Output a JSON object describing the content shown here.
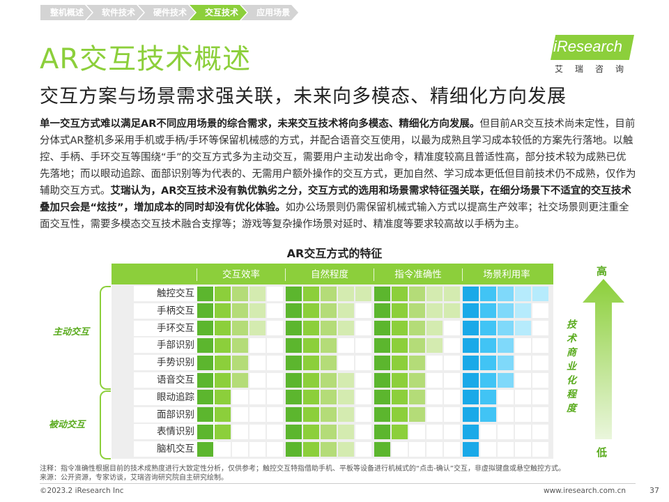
{
  "breadcrumb": [
    "整机概述",
    "软件技术",
    "硬件技术",
    "交互技术",
    "应用场景"
  ],
  "breadcrumb_active": 3,
  "title": "AR交互技术概述",
  "subtitle": "交互方案与场景需求强关联，未来向多模态、精细化方向发展",
  "logo": {
    "text": "iResearch",
    "sub": "艾瑞咨询"
  },
  "body": [
    {
      "bold": true,
      "text": "单一交互方式难以满足AR不同应用场景的综合需求，未来交互技术将向多模态、精细化方向发展。"
    },
    {
      "bold": false,
      "text": "但目前AR交互技术尚未定性，目前分体式AR整机多采用手机或手柄/手环等保留机械感的方式，并配合语音交互使用，以最为成熟且学习成本较低的方案先行落地。以触控、手柄、手环交互等围绕“手”的交互方式多为主动交互，需要用户主动发出命令，精准度较高且普适性高，部分技术较为成熟已优先落地；而以眼动追踪、面部识别等为代表的、无需用户额外操作的交互方式，更加自然、学习成本更低但目前技术仍不成熟，仅作为辅助交互方式。"
    },
    {
      "bold": true,
      "text": "艾瑞认为，AR交互技术没有孰优孰劣之分，交互方式的选用和场景需求特征强关联，在细分场景下不适宜的交互技术叠加只会是“炫技”，增加成本的同时却没有优化体验。"
    },
    {
      "bold": false,
      "text": "如办公场景则仍需保留机械式输入方式以提高生产效率；社交场景则更注重全面交互性，需要多模态交互技术融合支撑等；游戏等复杂操作场景对延时、精准度等要求较高故以手柄为主。"
    }
  ],
  "chart_title": "AR交互方式的特征",
  "groups": [
    "交互效率",
    "自然程度",
    "指令准确性",
    "场景利用率"
  ],
  "rows": [
    "触控交互",
    "手柄交互",
    "手环交互",
    "手部识别",
    "手势识别",
    "语音交互",
    "眼动追踪",
    "面部识别",
    "表情识别",
    "脑机交互"
  ],
  "side_labels": [
    "主动交互",
    "被动交互"
  ],
  "scores": [
    [
      4,
      5,
      5,
      5
    ],
    [
      4,
      4,
      5,
      4
    ],
    [
      4,
      4,
      4,
      4
    ],
    [
      3,
      3,
      4,
      3
    ],
    [
      3,
      3,
      3,
      3
    ],
    [
      3,
      4,
      3,
      3
    ],
    [
      2,
      4,
      3,
      2
    ],
    [
      2,
      4,
      3,
      2
    ],
    [
      2,
      4,
      2,
      1
    ],
    [
      1,
      4,
      1,
      1
    ]
  ],
  "colors": {
    "accent": "#8ccf3b",
    "scale_green": [
      "#5cb62e",
      "#8ccf3b",
      "#b4dc78",
      "#d4ebb0"
    ],
    "scale_blue": [
      "#1aa9e8",
      "#41c4f5",
      "#7fd9fa",
      "#b6ebfc"
    ],
    "empty": "#ffffff"
  },
  "arrow": {
    "high": "高",
    "low": "低",
    "label": "技术商业化程度"
  },
  "notes": [
    "注释：指令准确性根据目前的技术成熟度进行大致定性分析，仅供参考；触控交互特指借助手机、平板等设备进行机械式的“点击-确认”交互，非虚拟键盘或悬空触控方式。",
    "来源：公开资源，专家访谈，艾瑞咨询研究院自主研究绘制。"
  ],
  "copyright": "©2023.2 iResearch Inc",
  "site": "www.iresearch.com.cn",
  "page_number": "37"
}
